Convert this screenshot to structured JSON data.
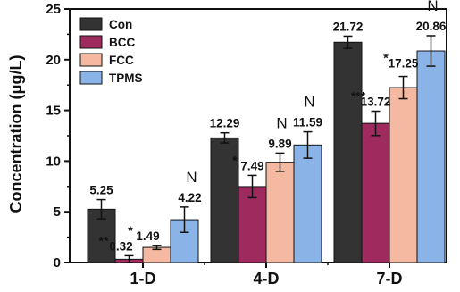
{
  "chart_data": {
    "type": "bar",
    "ylabel": "Concentration (μg/L)",
    "xlabel": "",
    "title": "",
    "categories": [
      "1-D",
      "4-D",
      "7-D"
    ],
    "ylim": [
      0,
      25
    ],
    "yticks": [
      0,
      5,
      10,
      15,
      20,
      25
    ],
    "legend_position": "top-left",
    "grid": false,
    "series": [
      {
        "name": "Con",
        "color": "#333333",
        "values": [
          5.25,
          12.29,
          21.72
        ],
        "errors": [
          0.95,
          0.5,
          0.6
        ],
        "labels": [
          "5.25",
          "12.29",
          "21.72"
        ],
        "significance": [
          "",
          "",
          ""
        ]
      },
      {
        "name": "BCC",
        "color": "#9e2a5e",
        "values": [
          0.32,
          7.49,
          13.72
        ],
        "errors": [
          0.35,
          1.1,
          1.2
        ],
        "labels": [
          "0.32",
          "7.49",
          "13.72"
        ],
        "significance": [
          "**",
          "*",
          "***"
        ]
      },
      {
        "name": "FCC",
        "color": "#f5b8a0",
        "values": [
          1.49,
          9.89,
          17.25
        ],
        "errors": [
          0.2,
          0.9,
          1.1
        ],
        "labels": [
          "1.49",
          "9.89",
          "17.25"
        ],
        "significance": [
          "*",
          "N",
          "*"
        ]
      },
      {
        "name": "TPMS",
        "color": "#8ab4e8",
        "values": [
          4.22,
          11.59,
          20.86
        ],
        "errors": [
          1.25,
          1.3,
          1.5
        ],
        "labels": [
          "4.22",
          "11.59",
          "20.86"
        ],
        "significance": [
          "N",
          "N",
          "N"
        ]
      }
    ]
  }
}
